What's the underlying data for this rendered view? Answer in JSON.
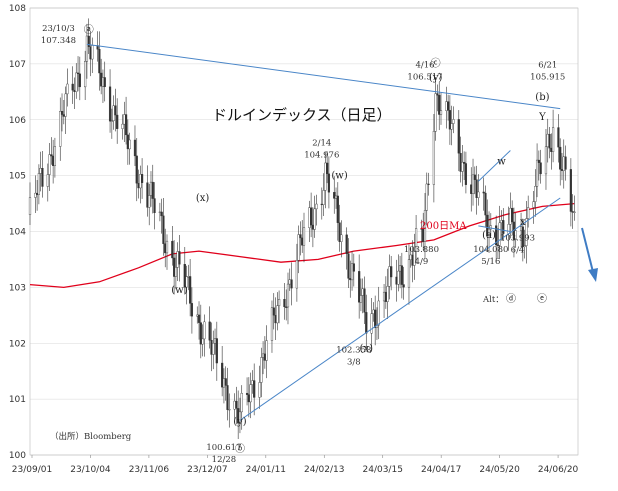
{
  "chart_data": {
    "type": "candlestick",
    "title": "ドルインデックス（日足）",
    "source": "（出所）Bloomberg",
    "ma_label": "200日MA",
    "alt_label": "Alt：",
    "ylim": [
      100,
      108
    ],
    "y_ticks": [
      100,
      101,
      102,
      103,
      104,
      105,
      106,
      107,
      108
    ],
    "x_tick_labels": [
      "23/09/01",
      "23/10/04",
      "23/11/06",
      "23/12/07",
      "24/01/11",
      "24/02/13",
      "24/03/15",
      "24/04/17",
      "24/05/20",
      "24/06/20"
    ],
    "key_points": [
      {
        "date": "2023-10-03",
        "value": 107.348
      },
      {
        "date": "2023-12-28",
        "value": 100.617
      },
      {
        "date": "2024-02-14",
        "value": 104.976
      },
      {
        "date": "2024-03-08",
        "value": 102.358
      },
      {
        "date": "2024-04-09",
        "value": 103.88
      },
      {
        "date": "2024-04-16",
        "value": 106.517
      },
      {
        "date": "2024-05-16",
        "value": 104.08
      },
      {
        "date": "2024-06-04",
        "value": 103.993
      },
      {
        "date": "2024-06-21",
        "value": 105.915
      },
      {
        "date": "2024-07-03",
        "value": 104.1
      }
    ],
    "ma200": [
      {
        "date": "2023-09-01",
        "value": 103.05
      },
      {
        "date": "2023-09-20",
        "value": 103.0
      },
      {
        "date": "2023-10-10",
        "value": 103.1
      },
      {
        "date": "2023-11-01",
        "value": 103.35
      },
      {
        "date": "2023-11-20",
        "value": 103.6
      },
      {
        "date": "2023-12-05",
        "value": 103.65
      },
      {
        "date": "2023-12-28",
        "value": 103.55
      },
      {
        "date": "2024-01-20",
        "value": 103.45
      },
      {
        "date": "2024-02-10",
        "value": 103.5
      },
      {
        "date": "2024-03-01",
        "value": 103.65
      },
      {
        "date": "2024-03-25",
        "value": 103.75
      },
      {
        "date": "2024-04-15",
        "value": 103.85
      },
      {
        "date": "2024-05-05",
        "value": 104.1
      },
      {
        "date": "2024-05-25",
        "value": 104.3
      },
      {
        "date": "2024-06-15",
        "value": 104.45
      },
      {
        "date": "2024-07-03",
        "value": 104.5
      }
    ],
    "trendlines": [
      {
        "from": {
          "date": "2023-10-03",
          "value": 107.35
        },
        "to": {
          "date": "2024-06-25",
          "value": 106.2
        },
        "color": "#4a86c8"
      },
      {
        "from": {
          "date": "2023-12-28",
          "value": 100.62
        },
        "to": {
          "date": "2024-06-25",
          "value": 104.6
        },
        "color": "#4a86c8"
      },
      {
        "from": {
          "date": "2024-05-10",
          "value": 104.9
        },
        "to": {
          "date": "2024-05-28",
          "value": 105.45
        },
        "color": "#4a86c8"
      },
      {
        "from": {
          "date": "2024-05-10",
          "value": 104.1
        },
        "to": {
          "date": "2024-05-28",
          "value": 104.0
        },
        "color": "#4a86c8"
      }
    ],
    "wave_labels": [
      {
        "text": "ⓐ",
        "date": "2023-10-04",
        "value": 107.55
      },
      {
        "text": "(x)",
        "date": "2023-12-07",
        "value": 104.55
      },
      {
        "text": "(w)",
        "date": "2023-11-24",
        "value": 102.9
      },
      {
        "text": "(y)",
        "date": "2023-12-28",
        "value": 100.55
      },
      {
        "text": "ⓑ",
        "date": "2023-12-28",
        "value": 100.05
      },
      {
        "text": "(w)",
        "date": "2024-02-22",
        "value": 104.95
      },
      {
        "text": "(x)",
        "date": "2024-03-08",
        "value": 101.85
      },
      {
        "text": "ⓒ",
        "date": "2024-04-16",
        "value": 106.95
      },
      {
        "text": "(y)",
        "date": "2024-04-16",
        "value": 106.7
      },
      {
        "text": "(a)",
        "date": "2024-05-16",
        "value": 103.88
      },
      {
        "text": "w",
        "date": "2024-05-23",
        "value": 105.2
      },
      {
        "text": "x",
        "date": "2024-06-04",
        "value": 104.12
      },
      {
        "text": "Y",
        "date": "2024-06-15",
        "value": 106.0
      },
      {
        "text": "(b)",
        "date": "2024-06-15",
        "value": 106.35
      }
    ],
    "value_labels": [
      {
        "lines": [
          "23/10/3",
          "107.348"
        ],
        "date": "2023-09-17",
        "value": 107.55
      },
      {
        "lines": [
          "100.617",
          "12/28"
        ],
        "date": "2023-12-19",
        "value": 100.05
      },
      {
        "lines": [
          "2/14",
          "104.976"
        ],
        "date": "2024-02-12",
        "value": 105.5
      },
      {
        "lines": [
          "102.358",
          "3/8"
        ],
        "date": "2024-03-01",
        "value": 101.8
      },
      {
        "lines": [
          "103.880",
          "4/9"
        ],
        "date": "2024-04-08",
        "value": 103.6
      },
      {
        "lines": [
          "4/16",
          "106.517"
        ],
        "date": "2024-04-10",
        "value": 106.9
      },
      {
        "lines": [
          "104.080",
          "5/16"
        ],
        "date": "2024-05-17",
        "value": 103.6
      },
      {
        "lines": [
          "103.993",
          "6/4"
        ],
        "date": "2024-06-01",
        "value": 103.8
      },
      {
        "lines": [
          "6/21",
          "105.915"
        ],
        "date": "2024-06-18",
        "value": 106.9
      }
    ],
    "alt_marks": [
      "ⓓ",
      "ⓔ"
    ]
  }
}
